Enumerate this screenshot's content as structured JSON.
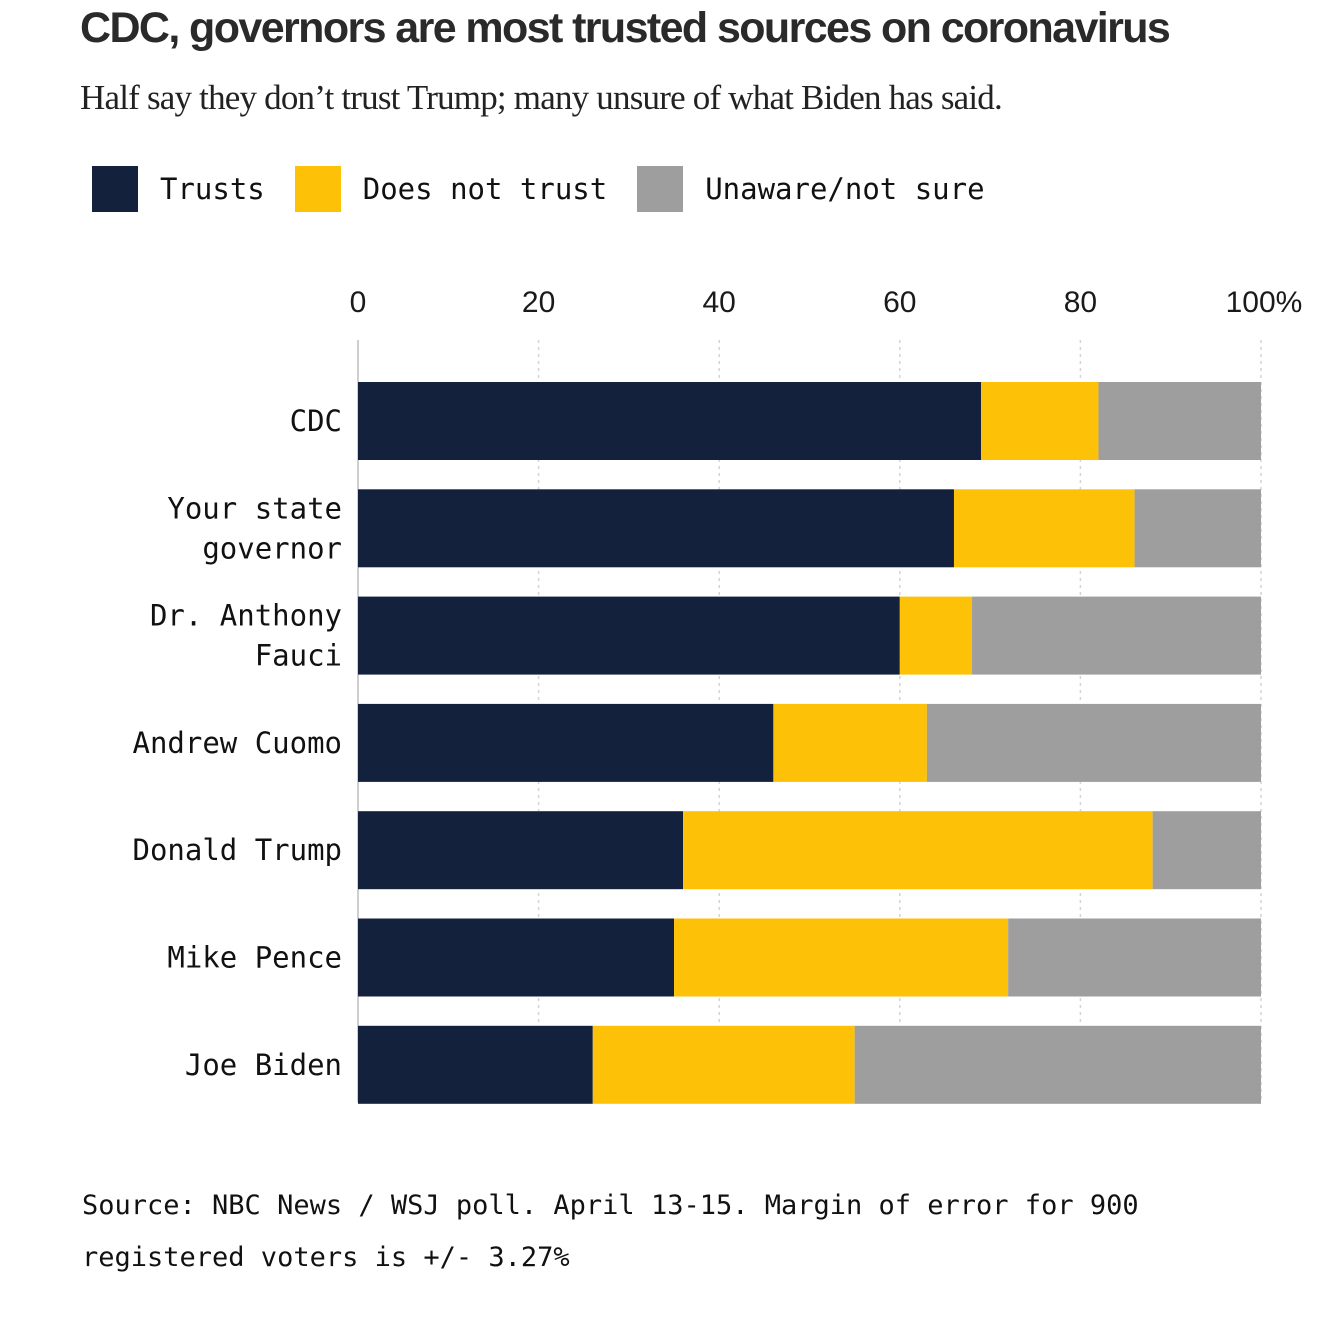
{
  "chart_data": {
    "type": "bar",
    "stacked": true,
    "orientation": "horizontal",
    "title": "CDC, governors are most trusted sources on coronavirus",
    "subtitle": "Half say they don’t trust Trump; many unsure of what Biden has said.",
    "xlim": [
      0,
      100
    ],
    "x_ticks": [
      "0",
      "20",
      "40",
      "60",
      "80",
      "100%"
    ],
    "grid": true,
    "legend_position": "top-left",
    "categories": [
      [
        "CDC"
      ],
      [
        "Your state",
        "governor"
      ],
      [
        "Dr. Anthony",
        "Fauci"
      ],
      [
        "Andrew Cuomo"
      ],
      [
        "Donald Trump"
      ],
      [
        "Mike Pence"
      ],
      [
        "Joe Biden"
      ]
    ],
    "series": [
      {
        "name": "Trusts",
        "color": "#14213d",
        "values": [
          69,
          66,
          60,
          46,
          36,
          35,
          26
        ]
      },
      {
        "name": "Does not trust",
        "color": "#fdc107",
        "values": [
          13,
          20,
          8,
          17,
          52,
          37,
          29
        ]
      },
      {
        "name": "Unaware/not sure",
        "color": "#9e9e9e",
        "values": [
          18,
          14,
          32,
          37,
          12,
          28,
          45
        ]
      }
    ],
    "source": "Source: NBC News / WSJ poll. April 13-15. Margin of error for 900 registered voters is +/- 3.27%"
  }
}
